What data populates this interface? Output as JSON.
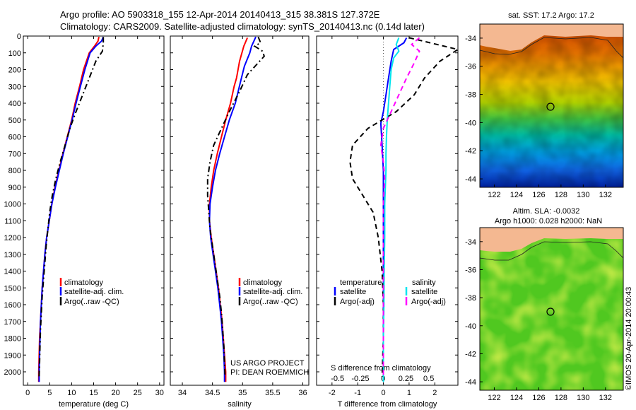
{
  "header": {
    "line1": "Argo profile: AO 5903318_155 12-Apr-2014 20140413_315 38.381S 127.372E",
    "line2": "Climatology: CARS2009. Satellite-adjusted climatology: synTS_20140413.nc (0.14d later)"
  },
  "colors": {
    "climatology": "#ff0000",
    "satellite": "#0000ff",
    "argo": "#000000",
    "satellite_salinity": "#00e5ee",
    "argo_salinity": "#ff00ff",
    "land": "#f4b891"
  },
  "chart_data": [
    {
      "type": "line",
      "name": "temperature-profile",
      "xlabel": "temperature (deg C)",
      "xlim": [
        -1,
        31
      ],
      "xticks": [
        "0",
        "5",
        "10",
        "15",
        "20",
        "25",
        "30"
      ],
      "ylim": [
        2080,
        0
      ],
      "yticks": [
        "0",
        "100",
        "200",
        "300",
        "400",
        "500",
        "600",
        "700",
        "800",
        "900",
        "1000",
        "1100",
        "1200",
        "1300",
        "1400",
        "1500",
        "1600",
        "1700",
        "1800",
        "1900",
        "2000"
      ],
      "legend": [
        "climatology",
        "satellite-adj. clim.",
        "Argo(..raw -QC)"
      ],
      "series": [
        {
          "name": "climatology",
          "color": "#ff0000",
          "dash": "",
          "points": [
            [
              16.2,
              5
            ],
            [
              16,
              30
            ],
            [
              15.2,
              60
            ],
            [
              14,
              100
            ],
            [
              12.7,
              200
            ],
            [
              11.8,
              300
            ],
            [
              10.8,
              400
            ],
            [
              10,
              500
            ],
            [
              9,
              600
            ],
            [
              8,
              700
            ],
            [
              7.1,
              800
            ],
            [
              6.2,
              900
            ],
            [
              5.5,
              1000
            ],
            [
              4.9,
              1100
            ],
            [
              4.3,
              1200
            ],
            [
              3.9,
              1300
            ],
            [
              3.6,
              1400
            ],
            [
              3.3,
              1500
            ],
            [
              3.1,
              1600
            ],
            [
              2.9,
              1700
            ],
            [
              2.7,
              1800
            ],
            [
              2.6,
              1900
            ],
            [
              2.5,
              2000
            ],
            [
              2.5,
              2060
            ]
          ]
        },
        {
          "name": "satellite-adj. clim.",
          "color": "#0000ff",
          "dash": "",
          "points": [
            [
              17.2,
              5
            ],
            [
              16.8,
              30
            ],
            [
              15.5,
              60
            ],
            [
              14.2,
              100
            ],
            [
              13,
              200
            ],
            [
              12,
              300
            ],
            [
              11,
              400
            ],
            [
              10.1,
              500
            ],
            [
              9.1,
              600
            ],
            [
              8.1,
              700
            ],
            [
              7.2,
              800
            ],
            [
              6.3,
              900
            ],
            [
              5.5,
              1000
            ],
            [
              4.9,
              1100
            ],
            [
              4.3,
              1200
            ],
            [
              3.9,
              1300
            ],
            [
              3.6,
              1400
            ],
            [
              3.3,
              1500
            ],
            [
              3.1,
              1600
            ],
            [
              2.9,
              1700
            ],
            [
              2.8,
              1800
            ],
            [
              2.7,
              1900
            ],
            [
              2.6,
              2000
            ],
            [
              2.6,
              2060
            ]
          ]
        },
        {
          "name": "Argo(..raw -QC)",
          "color": "#000000",
          "dash": "8,4,2,4",
          "points": [
            [
              17.2,
              5
            ],
            [
              17.2,
              40
            ],
            [
              17,
              90
            ],
            [
              15.5,
              150
            ],
            [
              14,
              250
            ],
            [
              12.5,
              350
            ],
            [
              11,
              450
            ],
            [
              9.6,
              550
            ],
            [
              8.5,
              650
            ],
            [
              7.4,
              750
            ],
            [
              6.4,
              850
            ],
            [
              5.6,
              950
            ],
            [
              5,
              1050
            ],
            [
              4.6,
              1150
            ],
            [
              4.2,
              1250
            ],
            [
              3.9,
              1350
            ],
            [
              3.6,
              1450
            ],
            [
              3.3,
              1550
            ],
            [
              3.1,
              1650
            ],
            [
              2.9,
              1750
            ],
            [
              2.8,
              1850
            ],
            [
              2.7,
              1950
            ],
            [
              2.6,
              2030
            ]
          ]
        }
      ]
    },
    {
      "type": "line",
      "name": "salinity-profile",
      "xlabel": "salinity",
      "xlim": [
        33.8,
        36.1
      ],
      "xticks": [
        "34",
        "34.5",
        "35",
        "35.5",
        "36"
      ],
      "ylim": [
        2080,
        0
      ],
      "legend": [
        "climatology",
        "satellite-adj. clim.",
        "Argo(..raw -QC)"
      ],
      "annotation": [
        "US ARGO PROJECT",
        "PI: DEAN ROEMMICH"
      ],
      "series": [
        {
          "name": "climatology",
          "color": "#ff0000",
          "dash": "",
          "points": [
            [
              35.08,
              10
            ],
            [
              35.02,
              60
            ],
            [
              34.95,
              150
            ],
            [
              34.9,
              250
            ],
            [
              34.86,
              300
            ],
            [
              34.8,
              400
            ],
            [
              34.72,
              500
            ],
            [
              34.65,
              600
            ],
            [
              34.58,
              700
            ],
            [
              34.52,
              800
            ],
            [
              34.48,
              900
            ],
            [
              34.45,
              1000
            ],
            [
              34.45,
              1100
            ],
            [
              34.48,
              1200
            ],
            [
              34.52,
              1300
            ],
            [
              34.56,
              1400
            ],
            [
              34.6,
              1500
            ],
            [
              34.63,
              1600
            ],
            [
              34.66,
              1700
            ],
            [
              34.68,
              1800
            ],
            [
              34.7,
              1900
            ],
            [
              34.72,
              2000
            ],
            [
              34.72,
              2060
            ]
          ]
        },
        {
          "name": "satellite-adj. clim.",
          "color": "#0000ff",
          "dash": "",
          "points": [
            [
              35.22,
              5
            ],
            [
              35.15,
              60
            ],
            [
              35.12,
              100
            ],
            [
              35.03,
              180
            ],
            [
              34.96,
              280
            ],
            [
              34.88,
              400
            ],
            [
              34.78,
              500
            ],
            [
              34.7,
              600
            ],
            [
              34.62,
              700
            ],
            [
              34.55,
              800
            ],
            [
              34.5,
              900
            ],
            [
              34.46,
              1000
            ],
            [
              34.45,
              1100
            ],
            [
              34.47,
              1200
            ],
            [
              34.51,
              1300
            ],
            [
              34.55,
              1400
            ],
            [
              34.59,
              1500
            ],
            [
              34.62,
              1600
            ],
            [
              34.65,
              1700
            ],
            [
              34.67,
              1800
            ],
            [
              34.69,
              1900
            ],
            [
              34.7,
              2000
            ],
            [
              34.7,
              2060
            ]
          ]
        },
        {
          "name": "Argo(..raw -QC)",
          "color": "#000000",
          "dash": "8,4,2,4",
          "points": [
            [
              35.26,
              5
            ],
            [
              35.3,
              40
            ],
            [
              35.2,
              60
            ],
            [
              35.33,
              90
            ],
            [
              35.36,
              120
            ],
            [
              35.08,
              230
            ],
            [
              34.95,
              330
            ],
            [
              34.78,
              450
            ],
            [
              34.65,
              550
            ],
            [
              34.52,
              650
            ],
            [
              34.46,
              750
            ],
            [
              34.42,
              850
            ],
            [
              34.42,
              950
            ],
            [
              34.44,
              1050
            ],
            [
              34.46,
              1150
            ],
            [
              34.5,
              1250
            ],
            [
              34.54,
              1350
            ],
            [
              34.58,
              1450
            ],
            [
              34.62,
              1550
            ],
            [
              34.65,
              1650
            ],
            [
              34.67,
              1750
            ],
            [
              34.69,
              1850
            ],
            [
              34.7,
              1950
            ],
            [
              34.71,
              2030
            ]
          ]
        }
      ]
    },
    {
      "type": "line",
      "name": "difference-profile",
      "xlabel": "T difference from climatology",
      "xlabel_top": "S difference from climatology",
      "xlim": [
        -2.6,
        2.9
      ],
      "xticks": [
        "-2",
        "-1",
        "0",
        "1",
        "2"
      ],
      "xticks_top": [
        "-0.5",
        "-0.25",
        "0",
        "0.25",
        "0.5"
      ],
      "ylim": [
        2080,
        0
      ],
      "legend_temperature": {
        "title": "temperature",
        "items": [
          "satellite",
          "Argo(-adj)"
        ]
      },
      "legend_salinity": {
        "title": "salinity",
        "items": [
          "satellite",
          "Argo(-adj)"
        ]
      },
      "series": [
        {
          "name": "temperature satellite",
          "color": "#0000ff",
          "dash": "",
          "points": [
            [
              0.9,
              10
            ],
            [
              0.8,
              40
            ],
            [
              0.4,
              80
            ],
            [
              0.3,
              150
            ],
            [
              0.2,
              250
            ],
            [
              0.1,
              350
            ],
            [
              0,
              450
            ],
            [
              -0.1,
              520
            ],
            [
              -0.05,
              650
            ],
            [
              0,
              800
            ],
            [
              0,
              1000
            ],
            [
              0,
              1200
            ],
            [
              0,
              1400
            ],
            [
              0,
              1600
            ],
            [
              0,
              1800
            ],
            [
              0,
              2060
            ]
          ]
        },
        {
          "name": "temperature Argo(-adj)",
          "color": "#000000",
          "dash": "7,5",
          "points": [
            [
              1,
              10
            ],
            [
              2.9,
              80
            ],
            [
              2.2,
              150
            ],
            [
              1.6,
              250
            ],
            [
              1.2,
              350
            ],
            [
              0.5,
              450
            ],
            [
              -0.6,
              550
            ],
            [
              -1.2,
              650
            ],
            [
              -1.3,
              750
            ],
            [
              -1.2,
              850
            ],
            [
              -0.8,
              950
            ],
            [
              -0.4,
              1050
            ],
            [
              -0.2,
              1200
            ],
            [
              -0.05,
              1400
            ],
            [
              0,
              1600
            ],
            [
              0,
              1800
            ],
            [
              -0.05,
              2030
            ]
          ]
        },
        {
          "name": "salinity satellite",
          "color": "#00e5ee",
          "dash": "",
          "points": [
            [
              0.6,
              10
            ],
            [
              0.5,
              50
            ],
            [
              0.6,
              90
            ],
            [
              0.4,
              130
            ],
            [
              0.3,
              200
            ],
            [
              0.25,
              300
            ],
            [
              0.2,
              400
            ],
            [
              0.15,
              500
            ],
            [
              0.12,
              600
            ],
            [
              0.1,
              700
            ],
            [
              0.1,
              800
            ],
            [
              0.05,
              1000
            ],
            [
              0.05,
              1200
            ],
            [
              0.03,
              1400
            ],
            [
              0.02,
              1600
            ],
            [
              0,
              1800
            ],
            [
              0,
              2060
            ]
          ]
        },
        {
          "name": "salinity Argo(-adj)",
          "color": "#ff00ff",
          "dash": "7,5",
          "points": [
            [
              1.4,
              10
            ],
            [
              1.1,
              50
            ],
            [
              1.4,
              90
            ],
            [
              1.2,
              160
            ],
            [
              0.9,
              250
            ],
            [
              0.6,
              350
            ],
            [
              0.3,
              450
            ],
            [
              0,
              550
            ],
            [
              -0.1,
              650
            ],
            [
              0,
              750
            ],
            [
              0.05,
              850
            ],
            [
              0,
              1000
            ],
            [
              0,
              1200
            ],
            [
              0,
              1400
            ],
            [
              0,
              1600
            ],
            [
              0,
              1800
            ],
            [
              0,
              2030
            ]
          ]
        }
      ]
    }
  ],
  "maps": {
    "sst": {
      "title": "sat. SST: 17.2 Argo: 17.2",
      "xticks": [
        "122",
        "124",
        "126",
        "128",
        "130",
        "132"
      ],
      "yticks": [
        "-34",
        "-36",
        "-38",
        "-40",
        "-42",
        "-44"
      ],
      "float_lon": 127.372,
      "float_lat": -38.381
    },
    "sla": {
      "title_line1": "Altim. SLA: -0.0032",
      "title_line2": "Argo h1000: 0.028 h2000: NaN",
      "xticks": [
        "122",
        "124",
        "126",
        "128",
        "130",
        "132"
      ],
      "yticks": [
        "-34",
        "-36",
        "-38",
        "-40",
        "-42",
        "-44"
      ],
      "float_lon": 127.372,
      "float_lat": -38.381,
      "side_label": "©IMOS 20-Apr-2014 20:00:43"
    }
  }
}
